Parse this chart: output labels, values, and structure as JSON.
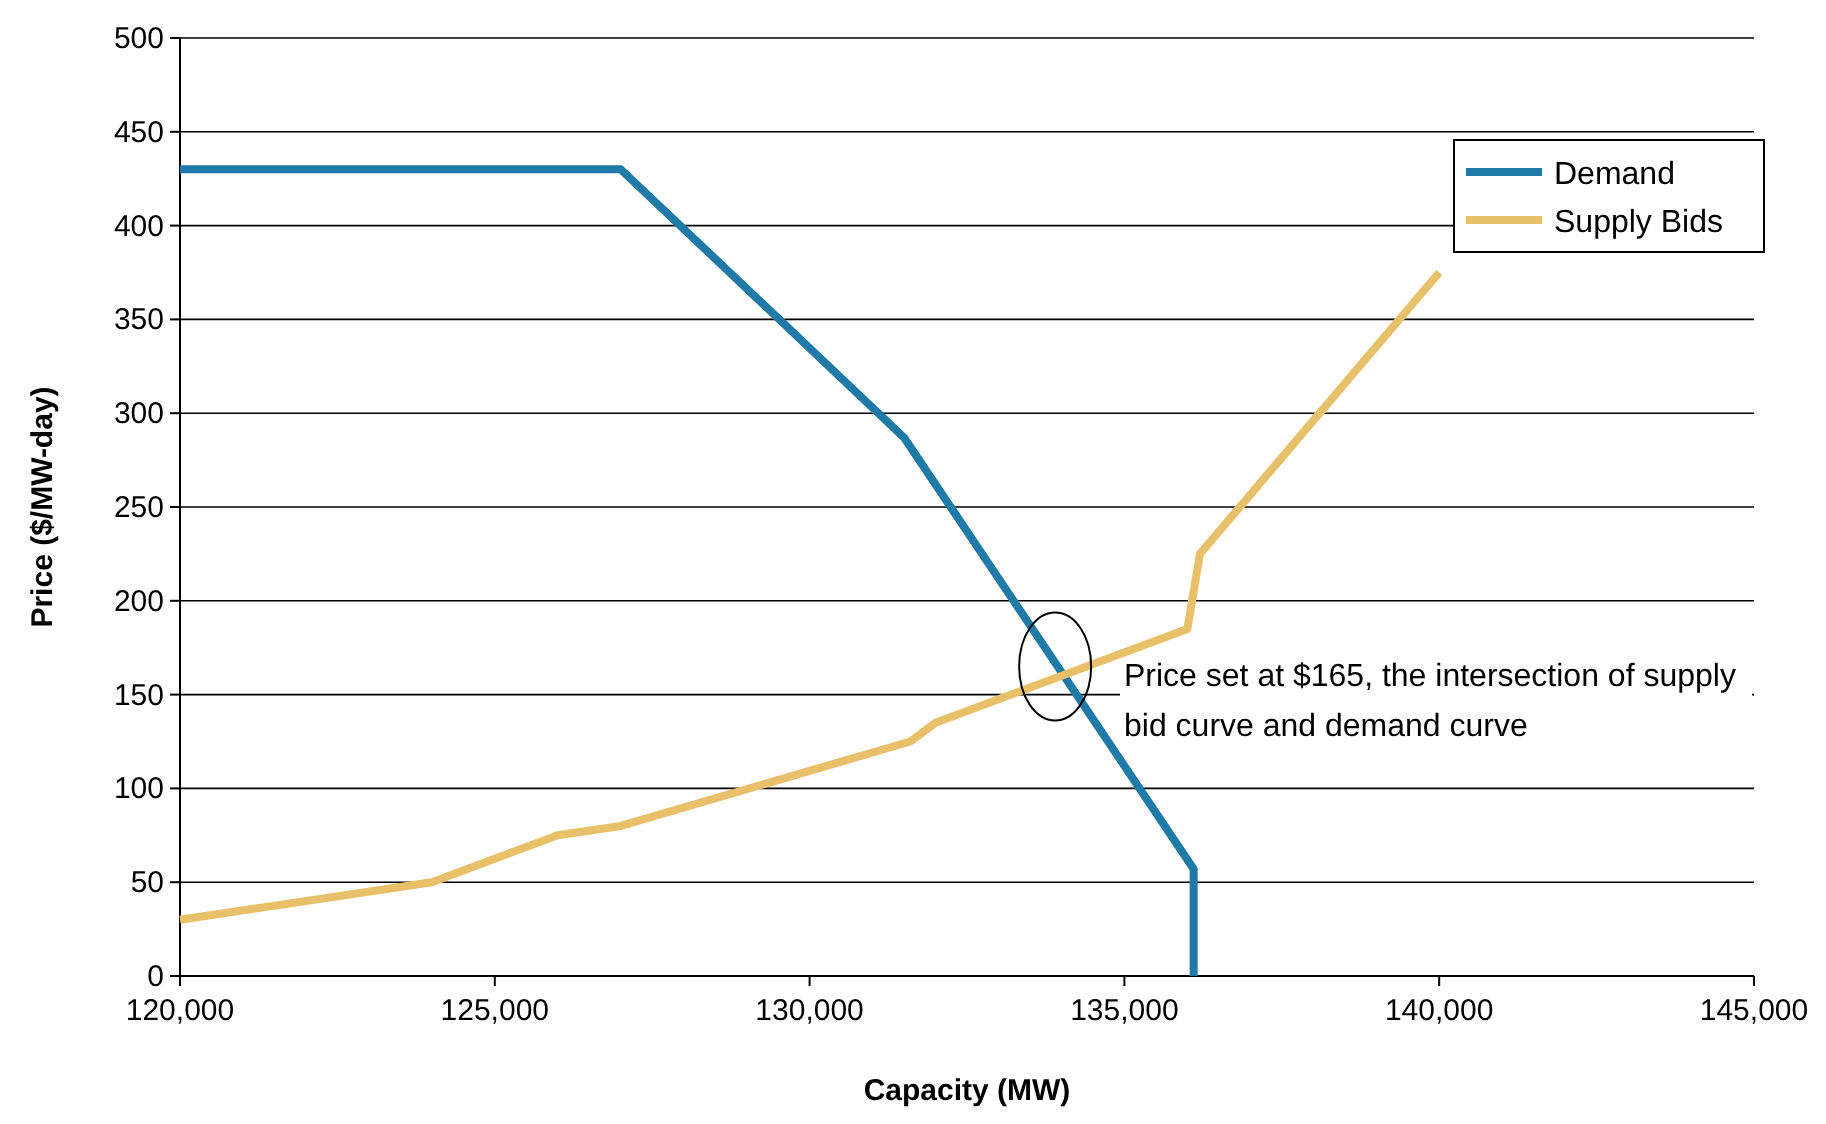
{
  "chart_data": {
    "type": "line",
    "xlabel": "Capacity (MW)",
    "ylabel": "Price ($/MW-day)",
    "xlim": [
      120000,
      145000
    ],
    "xticks": [
      {
        "value": 120000,
        "label": "120,000"
      },
      {
        "value": 125000,
        "label": "125,000"
      },
      {
        "value": 130000,
        "label": "130,000"
      },
      {
        "value": 135000,
        "label": "135,000"
      },
      {
        "value": 140000,
        "label": "140,000"
      },
      {
        "value": 145000,
        "label": "145,000"
      }
    ],
    "ylim": [
      0,
      500
    ],
    "yticks": [
      0,
      50,
      100,
      150,
      200,
      250,
      300,
      350,
      400,
      450,
      500
    ],
    "grid": "y",
    "legend": "top right",
    "marker": "none",
    "line_style": "solid",
    "series": [
      {
        "name": "Demand",
        "color": "#1f7aa8",
        "x": [
          120000,
          127000,
          131500,
          136100,
          136100
        ],
        "values": [
          430,
          430,
          287,
          57,
          0
        ]
      },
      {
        "name": "Supply Bids",
        "color": "#e8c06a",
        "x": [
          120000,
          124000,
          126000,
          127000,
          131600,
          132000,
          136000,
          136200,
          140000
        ],
        "values": [
          30,
          50,
          75,
          80,
          125,
          135,
          185,
          225,
          375
        ]
      }
    ],
    "annotations": [
      {
        "text": "Price set at $165, the intersection of supply bid curve and demand curve",
        "x": 133900,
        "y": 165
      }
    ]
  }
}
